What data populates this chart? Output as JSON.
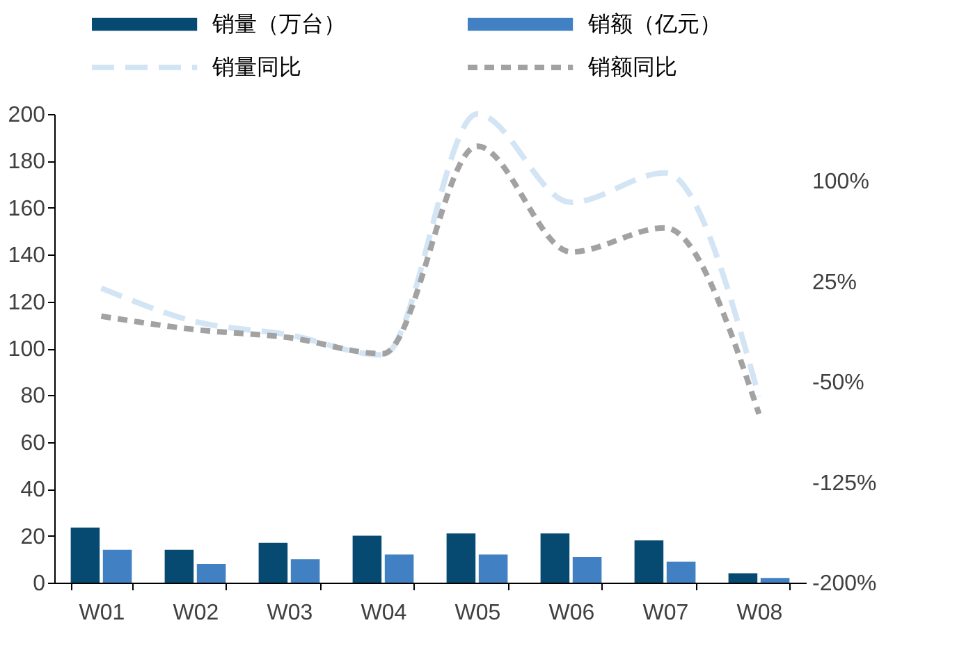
{
  "chart_data": {
    "type": "bar",
    "categories": [
      "W01",
      "W02",
      "W03",
      "W04",
      "W05",
      "W06",
      "W07",
      "W08"
    ],
    "series": [
      {
        "name": "销量（万台）",
        "color": "#064a72",
        "values": [
          23.5,
          14,
          17,
          20,
          21,
          21,
          18,
          4
        ]
      },
      {
        "name": "销额（亿元）",
        "color": "#4180c2",
        "values": [
          14,
          8,
          10,
          12,
          12,
          11,
          9,
          2
        ]
      },
      {
        "name": "销量同比",
        "type": "line",
        "axis": "y2",
        "color": "#d3e5f5",
        "line_style": "dashed",
        "values": [
          20,
          -5,
          -15,
          -30,
          150,
          84,
          106,
          -61
        ]
      },
      {
        "name": "销额同比",
        "type": "line",
        "axis": "y2",
        "color": "#a2a2a2",
        "line_style": "dotted",
        "values": [
          -1,
          -11,
          -17,
          -29,
          126,
          47,
          65,
          -74
        ]
      }
    ],
    "ylim": [
      0,
      200
    ],
    "yticks": [
      0,
      20,
      40,
      60,
      80,
      100,
      120,
      140,
      160,
      180,
      200
    ],
    "y2lim": [
      -200,
      150
    ],
    "y2ticks": [
      {
        "value": -200,
        "label": "-200%"
      },
      {
        "value": -125,
        "label": "-125%"
      },
      {
        "value": -50,
        "label": "-50%"
      },
      {
        "value": 25,
        "label": "25%"
      },
      {
        "value": 100,
        "label": "100%"
      }
    ],
    "grid": false,
    "legend": "top"
  }
}
